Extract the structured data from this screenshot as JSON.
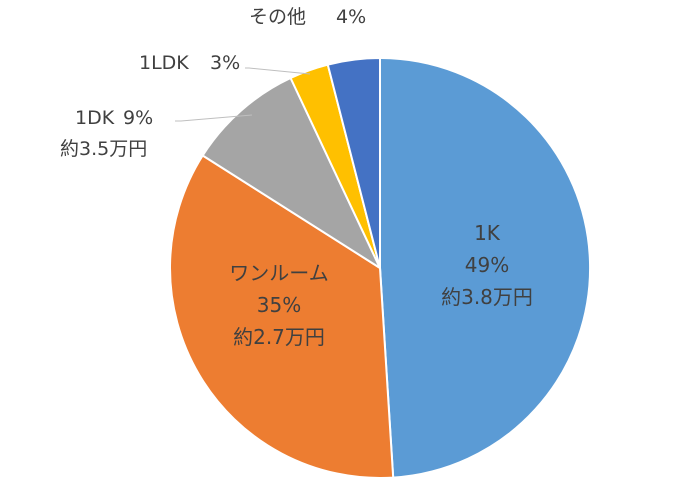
{
  "chart_data": {
    "type": "pie",
    "start_angle": "12 o'clock",
    "direction": "clockwise",
    "slices": [
      {
        "key": "1k",
        "label": "1K",
        "value": 49,
        "percent_text": "49%",
        "rent_text": "約3.8万円",
        "color": "#5B9BD5",
        "label_position": "inside"
      },
      {
        "key": "one-room",
        "label": "ワンルーム",
        "value": 35,
        "percent_text": "35%",
        "rent_text": "約2.7万円",
        "color": "#ED7D31",
        "label_position": "inside"
      },
      {
        "key": "1dk",
        "label": "1DK",
        "value": 9,
        "percent_text": "9%",
        "rent_text": "約3.5万円",
        "color": "#A5A5A5",
        "label_position": "outside"
      },
      {
        "key": "1ldk",
        "label": "1LDK",
        "value": 3,
        "percent_text": "3%",
        "rent_text": "",
        "color": "#FFC000",
        "label_position": "outside"
      },
      {
        "key": "other",
        "label": "その他",
        "value": 4,
        "percent_text": "4%",
        "rent_text": "",
        "color": "#4472C4",
        "label_position": "outside"
      }
    ]
  }
}
